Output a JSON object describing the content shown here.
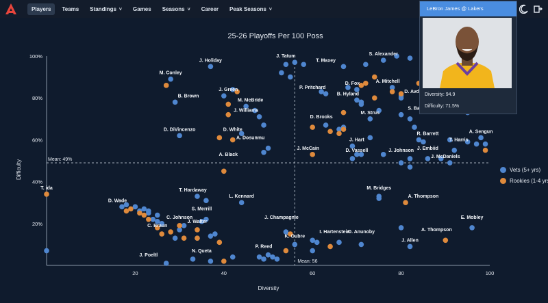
{
  "nav": {
    "items": [
      {
        "label": "Players",
        "active": true,
        "dropdown": false
      },
      {
        "label": "Teams",
        "active": false,
        "dropdown": false
      },
      {
        "label": "Standings",
        "active": false,
        "dropdown": true
      },
      {
        "label": "Games",
        "active": false,
        "dropdown": false
      },
      {
        "label": "Seasons",
        "active": false,
        "dropdown": true
      },
      {
        "label": "Career",
        "active": false,
        "dropdown": false
      },
      {
        "label": "Peak Seasons",
        "active": false,
        "dropdown": true
      }
    ]
  },
  "icons": {
    "logo": "logo-icon",
    "theme": "moon-icon",
    "export": "export-icon"
  },
  "colors": {
    "vets": "#4f86cf",
    "rookies": "#df8a3c",
    "background": "#0f1b2d",
    "accent": "#4a8de0"
  },
  "tooltip": {
    "title": "LeBron James @ Lakers",
    "diversity": "Diversity: 94.9",
    "difficulty": "Difficulty: 71.5%"
  },
  "legend": [
    {
      "label": "Vets (5+ yrs)",
      "color": "#4f86cf"
    },
    {
      "label": "Rookies (1-4 yrs)",
      "color": "#df8a3c"
    }
  ],
  "chart_data": {
    "type": "scatter",
    "title": "25-26 Playoffs Per 100 Poss",
    "xlabel": "Diversity",
    "ylabel": "Difficulty",
    "xlim": [
      0,
      100
    ],
    "ylim": [
      0,
      100
    ],
    "xticks": [
      "20",
      "40",
      "60",
      "80",
      "100"
    ],
    "yticks": [
      "20%",
      "40%",
      "60%",
      "80%",
      "100%"
    ],
    "mean_x": {
      "value": 56,
      "label": "Mean: 56"
    },
    "mean_y": {
      "value": 49,
      "label": "Mean: 49%"
    },
    "grid": false,
    "legend_position": "right",
    "series": [
      {
        "name": "Vets (5+ yrs)",
        "color": "#4f86cf",
        "points": [
          [
            28,
            89
          ],
          [
            37,
            95
          ],
          [
            40,
            81
          ],
          [
            29,
            78
          ],
          [
            42,
            84
          ],
          [
            45,
            76
          ],
          [
            47,
            74
          ],
          [
            48,
            71
          ],
          [
            49,
            67
          ],
          [
            44,
            63
          ],
          [
            50,
            56
          ],
          [
            49,
            54
          ],
          [
            30,
            62
          ],
          [
            53,
            92
          ],
          [
            54,
            96
          ],
          [
            56,
            97
          ],
          [
            58,
            96
          ],
          [
            55,
            90
          ],
          [
            67,
            95
          ],
          [
            76,
            98
          ],
          [
            72,
            96
          ],
          [
            62,
            83
          ],
          [
            63,
            82
          ],
          [
            68,
            85
          ],
          [
            70,
            84
          ],
          [
            70,
            79
          ],
          [
            71,
            77
          ],
          [
            71,
            78
          ],
          [
            73,
            70
          ],
          [
            63,
            67
          ],
          [
            66,
            65
          ],
          [
            67,
            66
          ],
          [
            69,
            57
          ],
          [
            70,
            53
          ],
          [
            75,
            74
          ],
          [
            80,
            80
          ],
          [
            80,
            81
          ],
          [
            78,
            85
          ],
          [
            80,
            72
          ],
          [
            82,
            70
          ],
          [
            83,
            66
          ],
          [
            84,
            60
          ],
          [
            85,
            59
          ],
          [
            91,
            60
          ],
          [
            92,
            55
          ],
          [
            97,
            58
          ],
          [
            98,
            61
          ],
          [
            99,
            58
          ],
          [
            95,
            59
          ],
          [
            82,
            47
          ],
          [
            82,
            51
          ],
          [
            86,
            51
          ],
          [
            89,
            51
          ],
          [
            91,
            49
          ],
          [
            76,
            53
          ],
          [
            80,
            49
          ],
          [
            71,
            53
          ],
          [
            69,
            51
          ],
          [
            73,
            61
          ],
          [
            79,
            100
          ],
          [
            82,
            99
          ],
          [
            100,
            100
          ],
          [
            95,
            73
          ],
          [
            25,
            24
          ],
          [
            20,
            28
          ],
          [
            22,
            27
          ],
          [
            23,
            26
          ],
          [
            18,
            29
          ],
          [
            17,
            28
          ],
          [
            21,
            26
          ],
          [
            23,
            25
          ],
          [
            24,
            22
          ],
          [
            25,
            21
          ],
          [
            26,
            20
          ],
          [
            30,
            17
          ],
          [
            31,
            19
          ],
          [
            29,
            13
          ],
          [
            34,
            33
          ],
          [
            36,
            31
          ],
          [
            44,
            30
          ],
          [
            35,
            21
          ],
          [
            36,
            22
          ],
          [
            37,
            14
          ],
          [
            34,
            13
          ],
          [
            38,
            15
          ],
          [
            54,
            16
          ],
          [
            56,
            10
          ],
          [
            60,
            12
          ],
          [
            61,
            11
          ],
          [
            66,
            11
          ],
          [
            71,
            10
          ],
          [
            75,
            33
          ],
          [
            75,
            32
          ],
          [
            80,
            18
          ],
          [
            82,
            9
          ],
          [
            96,
            18
          ],
          [
            60,
            7
          ],
          [
            33,
            3
          ],
          [
            37,
            2
          ],
          [
            42,
            4
          ],
          [
            48,
            4
          ],
          [
            49,
            3
          ],
          [
            50,
            5
          ],
          [
            51,
            4
          ],
          [
            52,
            3
          ],
          [
            27,
            1
          ],
          [
            0,
            7
          ]
        ]
      },
      {
        "name": "Rookies (1-4 yrs)",
        "color": "#df8a3c",
        "points": [
          [
            27,
            86
          ],
          [
            43,
            83
          ],
          [
            41,
            77
          ],
          [
            41,
            72
          ],
          [
            39,
            61
          ],
          [
            42,
            60
          ],
          [
            40,
            45
          ],
          [
            60,
            66
          ],
          [
            64,
            64
          ],
          [
            66,
            63
          ],
          [
            67,
            65
          ],
          [
            67,
            73
          ],
          [
            71,
            86
          ],
          [
            72,
            87
          ],
          [
            74,
            90
          ],
          [
            74,
            80
          ],
          [
            78,
            83
          ],
          [
            80,
            82
          ],
          [
            84,
            87
          ],
          [
            86,
            93
          ],
          [
            60,
            53
          ],
          [
            99,
            55
          ],
          [
            0,
            34
          ],
          [
            18,
            26
          ],
          [
            19,
            27
          ],
          [
            21,
            25
          ],
          [
            22,
            24
          ],
          [
            23,
            22
          ],
          [
            25,
            18
          ],
          [
            26,
            15
          ],
          [
            28,
            16
          ],
          [
            30,
            19
          ],
          [
            31,
            13
          ],
          [
            34,
            17
          ],
          [
            34,
            13
          ],
          [
            39,
            11
          ],
          [
            40,
            2
          ],
          [
            54,
            7
          ],
          [
            55,
            15
          ],
          [
            64,
            9
          ],
          [
            81,
            30
          ],
          [
            90,
            12
          ]
        ]
      }
    ],
    "labels": [
      {
        "text": "M. Conley",
        "x": 28,
        "y": 89
      },
      {
        "text": "J. Holiday",
        "x": 37,
        "y": 95
      },
      {
        "text": "J. Tatum",
        "x": 54,
        "y": 97
      },
      {
        "text": "T. Maxey",
        "x": 63,
        "y": 95
      },
      {
        "text": "S. Alexander",
        "x": 76,
        "y": 98
      },
      {
        "text": "D. Fox",
        "x": 69,
        "y": 84
      },
      {
        "text": "A. Mitchell",
        "x": 77,
        "y": 85
      },
      {
        "text": "J. Green",
        "x": 41,
        "y": 81
      },
      {
        "text": "B. Brown",
        "x": 32,
        "y": 78
      },
      {
        "text": "P. Pritchard",
        "x": 60,
        "y": 82
      },
      {
        "text": "D. Avdija",
        "x": 83,
        "y": 80
      },
      {
        "text": "B. Hyland",
        "x": 68,
        "y": 79
      },
      {
        "text": "M. McBride",
        "x": 46,
        "y": 76
      },
      {
        "text": "S. Barnes",
        "x": 84,
        "y": 72
      },
      {
        "text": "M. Strus",
        "x": 73,
        "y": 70
      },
      {
        "text": "J. Williams",
        "x": 45,
        "y": 71
      },
      {
        "text": "D. Brooks",
        "x": 62,
        "y": 68
      },
      {
        "text": "D. DiVincenzo",
        "x": 30,
        "y": 62
      },
      {
        "text": "D. White",
        "x": 42,
        "y": 62
      },
      {
        "text": "A. Dosunmu",
        "x": 46,
        "y": 58
      },
      {
        "text": "J. Hart",
        "x": 70,
        "y": 57
      },
      {
        "text": "R. Barrett",
        "x": 86,
        "y": 60
      },
      {
        "text": "A. Sengun",
        "x": 98,
        "y": 61
      },
      {
        "text": "T. Harris",
        "x": 93,
        "y": 57
      },
      {
        "text": "J. McCain",
        "x": 59,
        "y": 53
      },
      {
        "text": "D. Vassell",
        "x": 70,
        "y": 52
      },
      {
        "text": "J. Johnson",
        "x": 80,
        "y": 52
      },
      {
        "text": "J. Embiid",
        "x": 86,
        "y": 53
      },
      {
        "text": "J. McDaniels",
        "x": 90,
        "y": 49
      },
      {
        "text": "A. Black",
        "x": 41,
        "y": 50
      },
      {
        "text": "T. ida",
        "x": 0,
        "y": 34
      },
      {
        "text": "T. Hardaway",
        "x": 33,
        "y": 33
      },
      {
        "text": "L. Kennard",
        "x": 44,
        "y": 30
      },
      {
        "text": "M. Bridges",
        "x": 75,
        "y": 34
      },
      {
        "text": "A. Thompson",
        "x": 85,
        "y": 30
      },
      {
        "text": "D. Wade",
        "x": 16,
        "y": 28
      },
      {
        "text": "S. Merrill",
        "x": 35,
        "y": 24
      },
      {
        "text": "C. Johnson",
        "x": 30,
        "y": 20
      },
      {
        "text": "J. Champagnie",
        "x": 53,
        "y": 20
      },
      {
        "text": "E. Mobley",
        "x": 96,
        "y": 20
      },
      {
        "text": "C. Braun",
        "x": 25,
        "y": 16
      },
      {
        "text": "J. Walter",
        "x": 34,
        "y": 18
      },
      {
        "text": "I. Hartenstein",
        "x": 65,
        "y": 13
      },
      {
        "text": "O. Anunoby",
        "x": 71,
        "y": 13
      },
      {
        "text": "A. Thompson",
        "x": 88,
        "y": 14
      },
      {
        "text": "K. Oubre",
        "x": 56,
        "y": 11
      },
      {
        "text": "J. Allen",
        "x": 82,
        "y": 9
      },
      {
        "text": "P. Reed",
        "x": 49,
        "y": 6
      },
      {
        "text": "N. Queta",
        "x": 35,
        "y": 4
      },
      {
        "text": "J. Poeltl",
        "x": 23,
        "y": 2
      }
    ]
  }
}
